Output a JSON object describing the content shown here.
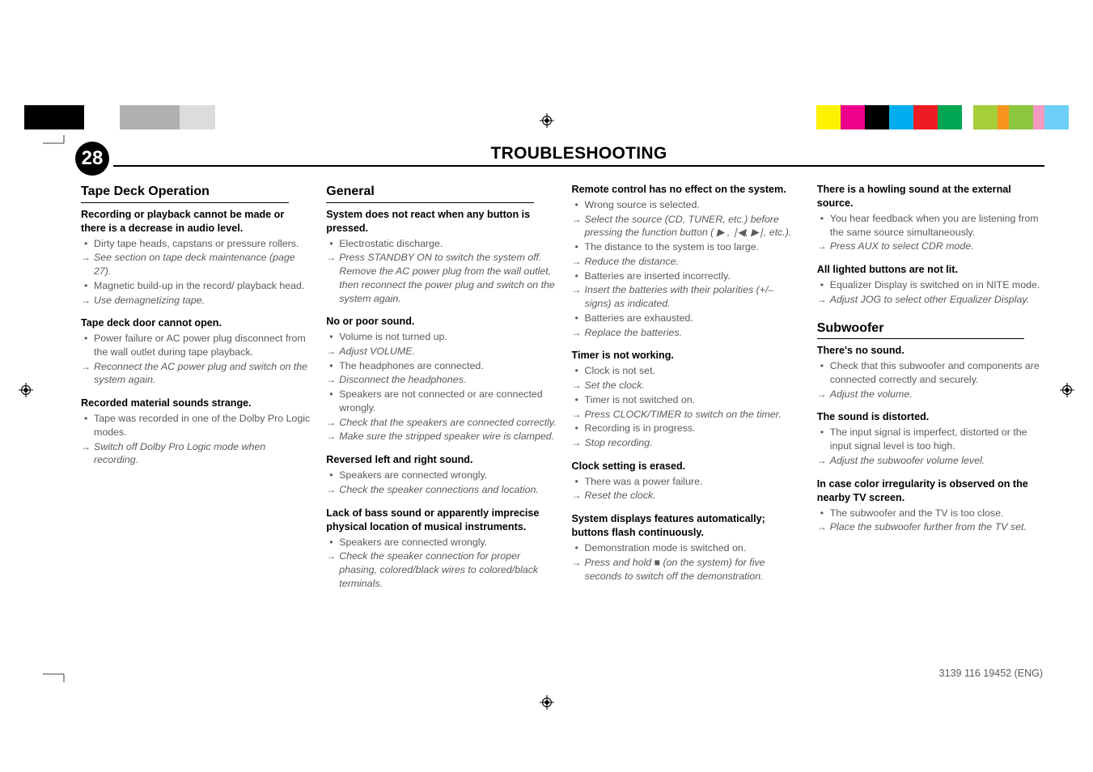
{
  "page_number": "28",
  "header_title": "TROUBLESHOOTING",
  "footer_code": "3139 116 19452 (ENG)",
  "colorbar": {
    "left": [
      "#000000",
      "#000000",
      "#000000",
      "#ffffff",
      "#ffffff",
      "#b0b0b0",
      "#b0b0b0",
      "#b0b0b0",
      "#dcdcdc",
      "#dcdcdc"
    ],
    "left_widths": [
      "sw-sm",
      "",
      "",
      "sw-sm",
      "",
      "sw-sm",
      "",
      "",
      "sw-sm",
      ""
    ],
    "right": [
      "#fff200",
      "#ec008c",
      "#000000",
      "#00aeef",
      "#ed1c24",
      "#00a651",
      "#ffffff",
      "#a6ce39",
      "#f7941d",
      "#8dc63f",
      "#f49ac1",
      "#6dcff6"
    ],
    "right_widths": [
      "",
      "",
      "",
      "",
      "",
      "",
      "sw-sm",
      "",
      "sw-sm",
      "",
      "sw-sm",
      ""
    ]
  },
  "glyphs": {
    "play": "▶",
    "prev": "∣◀",
    "next": "▶∣",
    "stop": "■"
  },
  "col1": {
    "section_title": "Tape Deck Operation",
    "g1": {
      "h": "Recording or playback cannot be made or there is a decrease in audio level.",
      "i": [
        {
          "t": "bullet",
          "txt": "Dirty tape heads, capstans or pressure rollers."
        },
        {
          "t": "arrow",
          "txt": "See section on tape deck maintenance (page 27)."
        },
        {
          "t": "bullet",
          "txt": "Magnetic build-up in the record/ playback head."
        },
        {
          "t": "arrow",
          "txt": "Use demagnetizing tape."
        }
      ]
    },
    "g2": {
      "h": "Tape deck door cannot open.",
      "i": [
        {
          "t": "bullet",
          "txt": "Power failure or AC power plug disconnect from the wall outlet during tape playback."
        },
        {
          "t": "arrow",
          "txt": "Reconnect the AC power plug and switch on the system again."
        }
      ]
    },
    "g3": {
      "h": "Recorded material sounds strange.",
      "i": [
        {
          "t": "bullet",
          "txt": "Tape was recorded in one of the Dolby Pro Logic modes."
        },
        {
          "t": "arrow",
          "txt": "Switch off Dolby Pro Logic mode when recording."
        }
      ]
    }
  },
  "col2": {
    "section_title": "General",
    "g1": {
      "h": "System does not react when any button is pressed.",
      "i": [
        {
          "t": "bullet",
          "txt": "Electrostatic discharge."
        },
        {
          "t": "arrow",
          "txt": "Press STANDBY ON to switch the system off. Remove the AC power plug from the wall outlet, then reconnect the power plug and switch on the system again."
        }
      ]
    },
    "g2": {
      "h": "No or poor sound.",
      "i": [
        {
          "t": "bullet",
          "txt": "Volume is not turned up."
        },
        {
          "t": "arrow",
          "txt": "Adjust VOLUME."
        },
        {
          "t": "bullet",
          "txt": "The headphones are connected."
        },
        {
          "t": "arrow",
          "txt": "Disconnect the headphones."
        },
        {
          "t": "bullet",
          "txt": "Speakers are not connected or are connected wrongly."
        },
        {
          "t": "arrow",
          "txt": "Check that the speakers are connected correctly."
        },
        {
          "t": "arrow",
          "txt": "Make sure the stripped speaker wire is clamped."
        }
      ]
    },
    "g3": {
      "h": "Reversed left and right sound.",
      "i": [
        {
          "t": "bullet",
          "txt": "Speakers are connected wrongly."
        },
        {
          "t": "arrow",
          "txt": "Check the speaker connections and location."
        }
      ]
    },
    "g4": {
      "h": "Lack of bass sound or apparently imprecise physical location of musical instruments.",
      "i": [
        {
          "t": "bullet",
          "txt": "Speakers are connected wrongly."
        },
        {
          "t": "arrow",
          "txt": "Check the speaker connection for proper phasing, colored/black wires to colored/black terminals."
        }
      ]
    }
  },
  "col3": {
    "g1": {
      "h": "Remote control has no effect on the system.",
      "i": [
        {
          "t": "bullet",
          "txt": "Wrong source is selected."
        },
        {
          "t": "arrow",
          "txt": "Select the source (CD, TUNER, etc.) before pressing the function button ( ▶ , ∣◀, ▶∣, etc.)."
        },
        {
          "t": "bullet",
          "txt": "The distance to the system is too large."
        },
        {
          "t": "arrow",
          "txt": "Reduce the distance."
        },
        {
          "t": "bullet",
          "txt": "Batteries are inserted incorrectly."
        },
        {
          "t": "arrow",
          "txt": "Insert the batteries with their polarities (+/– signs) as indicated."
        },
        {
          "t": "bullet",
          "txt": "Batteries are exhausted."
        },
        {
          "t": "arrow",
          "txt": "Replace the batteries."
        }
      ]
    },
    "g2": {
      "h": "Timer is not working.",
      "i": [
        {
          "t": "bullet",
          "txt": "Clock is not set."
        },
        {
          "t": "arrow",
          "txt": "Set the clock."
        },
        {
          "t": "bullet",
          "txt": "Timer is not switched on."
        },
        {
          "t": "arrow",
          "txt": "Press CLOCK/TIMER to switch on the timer."
        },
        {
          "t": "bullet",
          "txt": "Recording is in progress."
        },
        {
          "t": "arrow",
          "txt": "Stop recording."
        }
      ]
    },
    "g3": {
      "h": "Clock setting is erased.",
      "i": [
        {
          "t": "bullet",
          "txt": "There was a power failure."
        },
        {
          "t": "arrow",
          "txt": "Reset the clock."
        }
      ]
    },
    "g4": {
      "h": "System displays features automatically; buttons flash continuously.",
      "i": [
        {
          "t": "bullet",
          "txt": "Demonstration mode is switched on."
        },
        {
          "t": "arrow",
          "txt": "Press and hold ■ (on the system) for five seconds to switch off the demonstration."
        }
      ]
    }
  },
  "col4": {
    "g1": {
      "h": "There is a howling sound at the external source.",
      "i": [
        {
          "t": "bullet",
          "txt": "You hear feedback when you are listening from the same source simultaneously."
        },
        {
          "t": "arrow",
          "txt": "Press AUX to select CDR mode."
        }
      ]
    },
    "g2": {
      "h": "All lighted buttons are not lit.",
      "i": [
        {
          "t": "bullet",
          "txt": "Equalizer Display is switched on in NITE mode."
        },
        {
          "t": "arrow",
          "txt": "Adjust JOG to select other Equalizer Display."
        }
      ]
    },
    "section_title_2": "Subwoofer",
    "g3": {
      "h": "There's no sound.",
      "i": [
        {
          "t": "bullet",
          "txt": "Check that this subwoofer and components are connected correctly and securely."
        },
        {
          "t": "arrow",
          "txt": "Adjust the volume."
        }
      ]
    },
    "g4": {
      "h": "The sound is distorted.",
      "i": [
        {
          "t": "bullet",
          "txt": "The input signal is imperfect, distorted or the input signal level is too high."
        },
        {
          "t": "arrow",
          "txt": "Adjust the subwoofer volume level."
        }
      ]
    },
    "g5": {
      "h": "In case color irregularity is observed on the nearby TV screen.",
      "i": [
        {
          "t": "bullet",
          "txt": "The subwoofer and the TV is too close."
        },
        {
          "t": "arrow",
          "txt": "Place the subwoofer further from the TV set."
        }
      ]
    }
  }
}
